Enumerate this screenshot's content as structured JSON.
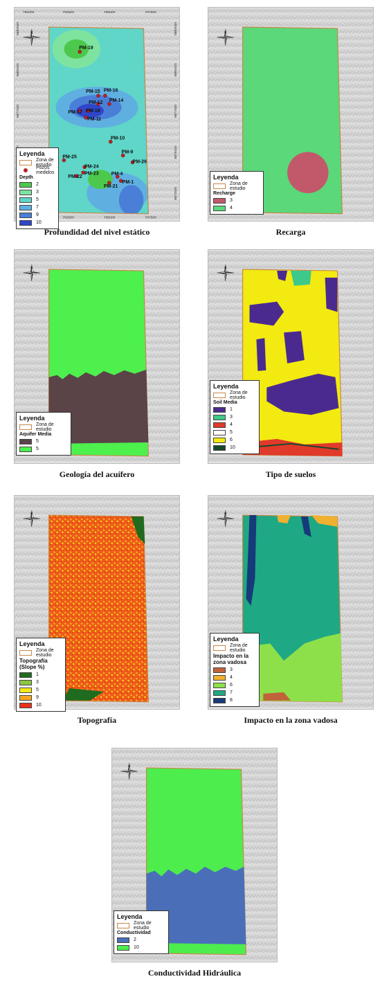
{
  "coords": {
    "x_ticks": [
      "790000",
      "792500",
      "795000",
      "797500"
    ],
    "y_ticks": [
      "8882500",
      "8880000",
      "8877500",
      "8875000",
      "8872500"
    ]
  },
  "panels": [
    {
      "caption": "Profundidad del nivel estático",
      "legend": {
        "title": "Leyenda",
        "zona": "Zona de estudio",
        "pozos": "Pozos medidos",
        "header": "Depth",
        "items": [
          {
            "label": "2",
            "color": "#4cc94c"
          },
          {
            "label": "3",
            "color": "#7fe3a0"
          },
          {
            "label": "5",
            "color": "#5fd6c8"
          },
          {
            "label": "7",
            "color": "#5fb0e0"
          },
          {
            "label": "9",
            "color": "#4a7fd8"
          },
          {
            "label": "10",
            "color": "#2f46c8"
          }
        ]
      },
      "wells": [
        "PM-19",
        "PM-15",
        "PM-16",
        "PM-12",
        "PM-14",
        "PM-17",
        "PM-18",
        "PM-11",
        "PM-10",
        "PM-9",
        "PM-25",
        "PM-26",
        "PM-24",
        "PM-23",
        "PM-22",
        "PM-4",
        "PM-1",
        "PM-21"
      ]
    },
    {
      "caption": "Recarga",
      "legend": {
        "title": "Leyenda",
        "zona": "Zona de estudio",
        "header": "Recharge",
        "items": [
          {
            "label": "3",
            "color": "#c2596b"
          },
          {
            "label": "4",
            "color": "#5ad87a"
          }
        ]
      }
    },
    {
      "caption": "Geología del acuífero",
      "legend": {
        "title": "Leyenda",
        "zona": "Zona de estudio",
        "header": "Aquifer Media",
        "items": [
          {
            "label": "5",
            "color": "#5a4448"
          },
          {
            "label": "5",
            "color": "#4df04d"
          }
        ]
      }
    },
    {
      "caption": "Tipo de suelos",
      "legend": {
        "title": "Leyenda",
        "zona": "Zona de estudio",
        "header": "Soil Media",
        "items": [
          {
            "label": "1",
            "color": "#4b2a90"
          },
          {
            "label": "3",
            "color": "#3cc98a"
          },
          {
            "label": "4",
            "color": "#e03a2a"
          },
          {
            "label": "5",
            "color": "#ffffff"
          },
          {
            "label": "6",
            "color": "#f2ea10"
          },
          {
            "label": "10",
            "color": "#154a2a"
          }
        ]
      }
    },
    {
      "caption": "Topografía",
      "legend": {
        "title": "Leyenda",
        "zona": "Zona de estudio",
        "header": "Topografía (Slope %)",
        "items": [
          {
            "label": "1",
            "color": "#1f6b1f"
          },
          {
            "label": "3",
            "color": "#8cc63f"
          },
          {
            "label": "5",
            "color": "#f5e81a"
          },
          {
            "label": "9",
            "color": "#f5a623"
          },
          {
            "label": "10",
            "color": "#e8331a"
          }
        ]
      }
    },
    {
      "caption": "Impacto en la zona vadosa",
      "legend": {
        "title": "Leyenda",
        "zona": "Zona de estudio",
        "header": "Impacto en la zona vadosa",
        "items": [
          {
            "label": "3",
            "color": "#c0623a"
          },
          {
            "label": "4",
            "color": "#f0b030"
          },
          {
            "label": "6",
            "color": "#8ee04a"
          },
          {
            "label": "7",
            "color": "#1fa884"
          },
          {
            "label": "8",
            "color": "#163a7a"
          }
        ]
      }
    },
    {
      "caption": "Conductividad Hidráulica",
      "legend": {
        "title": "Leyenda",
        "zona": "Zona de estudio",
        "header": "Conductividad",
        "items": [
          {
            "label": "2",
            "color": "#4a6fb8"
          },
          {
            "label": "10",
            "color": "#4ded4d"
          }
        ]
      }
    }
  ]
}
